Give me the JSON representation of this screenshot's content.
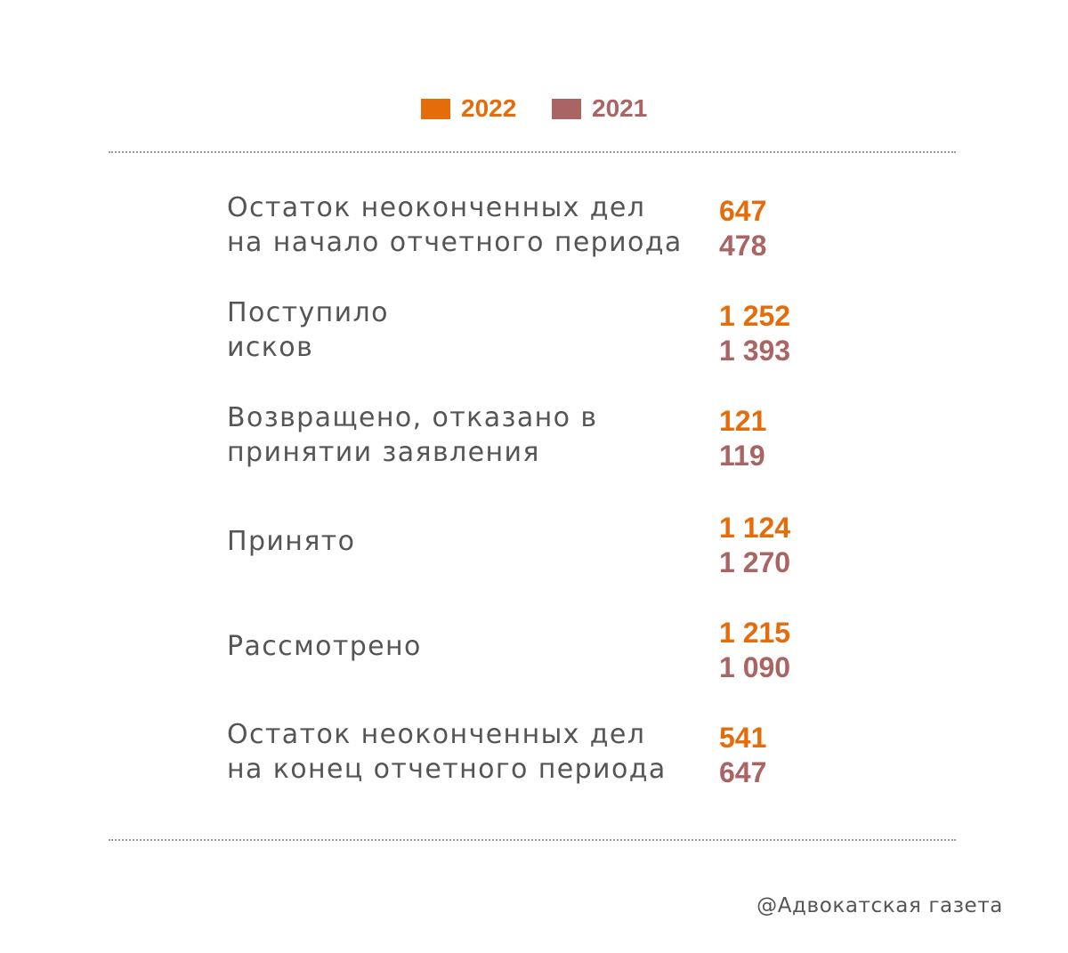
{
  "colors": {
    "series_2022": "#e46c0a",
    "series_2021": "#ab6464",
    "label": "#555555"
  },
  "legend": {
    "items": [
      {
        "label": "2022",
        "color": "#e46c0a"
      },
      {
        "label": "2021",
        "color": "#ab6464"
      }
    ]
  },
  "chart_data": {
    "type": "table",
    "series": [
      {
        "name": "2022",
        "values": [
          647,
          1252,
          121,
          1124,
          1215,
          541
        ]
      },
      {
        "name": "2021",
        "values": [
          478,
          1393,
          119,
          1270,
          1090,
          647
        ]
      }
    ],
    "rows": [
      {
        "label_lines": [
          "Остаток неоконченных дел",
          "на начало отчетного периода"
        ],
        "display": [
          "647",
          "478"
        ]
      },
      {
        "label_lines": [
          "Поступило",
          "исков"
        ],
        "display": [
          "1 252",
          "1 393"
        ]
      },
      {
        "label_lines": [
          "Возвращено, отказано в",
          "принятии заявления"
        ],
        "display": [
          "121",
          "119"
        ]
      },
      {
        "label_lines": [
          "Принято"
        ],
        "display": [
          "1 124",
          "1 270"
        ]
      },
      {
        "label_lines": [
          "Рассмотрено"
        ],
        "display": [
          "1 215",
          "1 090"
        ]
      },
      {
        "label_lines": [
          "Остаток неоконченных дел",
          "на конец отчетного периода"
        ],
        "display": [
          "541",
          "647"
        ]
      }
    ]
  },
  "footer": {
    "credit": "@Адвокатская газета"
  }
}
